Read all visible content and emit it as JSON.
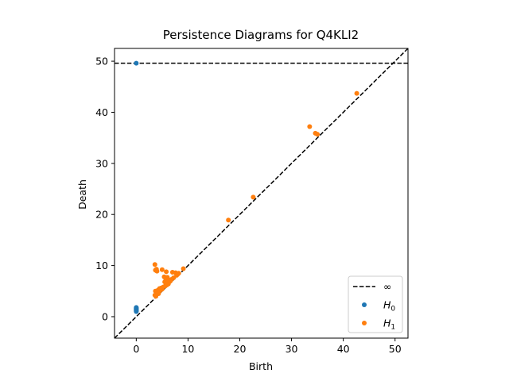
{
  "chart_data": {
    "type": "scatter",
    "title": "Persistence Diagrams for Q4KLI2",
    "xlabel": "Birth",
    "ylabel": "Death",
    "xlim": [
      -4.2,
      52.5
    ],
    "ylim": [
      -4.2,
      52.5
    ],
    "xticks": [
      0,
      10,
      20,
      30,
      40,
      50
    ],
    "yticks": [
      0,
      10,
      20,
      30,
      40,
      50
    ],
    "infinity_level": 49.6,
    "legend": {
      "placement": "lower-right",
      "entries": [
        {
          "label": "∞",
          "style": "dashed-line",
          "color": "#000000"
        },
        {
          "label": "H",
          "subscript": "0",
          "style": "dot",
          "color": "#1f77b4"
        },
        {
          "label": "H",
          "subscript": "1",
          "style": "dot",
          "color": "#ff7f0e"
        }
      ]
    },
    "series": [
      {
        "name": "H0",
        "color": "#1f77b4",
        "points": [
          [
            0,
            49.6
          ],
          [
            0,
            1.0
          ],
          [
            0,
            1.1
          ],
          [
            0,
            1.2
          ],
          [
            0,
            1.3
          ],
          [
            0,
            1.4
          ],
          [
            0,
            1.5
          ],
          [
            0,
            1.6
          ],
          [
            0,
            1.7
          ],
          [
            0,
            1.8
          ]
        ]
      },
      {
        "name": "H1",
        "color": "#ff7f0e",
        "points": [
          [
            42.6,
            43.7
          ],
          [
            33.5,
            37.2
          ],
          [
            34.6,
            35.9
          ],
          [
            35.0,
            35.7
          ],
          [
            22.6,
            23.4
          ],
          [
            17.8,
            18.9
          ],
          [
            3.6,
            10.2
          ],
          [
            3.7,
            9.1
          ],
          [
            3.9,
            9.3
          ],
          [
            4.0,
            8.9
          ],
          [
            5.0,
            9.2
          ],
          [
            5.8,
            8.8
          ],
          [
            7.0,
            8.7
          ],
          [
            7.6,
            8.6
          ],
          [
            8.2,
            8.5
          ],
          [
            9.1,
            9.4
          ],
          [
            5.4,
            7.8
          ],
          [
            5.7,
            7.4
          ],
          [
            6.0,
            7.7
          ],
          [
            6.3,
            7.2
          ],
          [
            6.6,
            7.0
          ],
          [
            5.5,
            6.8
          ],
          [
            5.9,
            6.5
          ],
          [
            6.2,
            6.4
          ],
          [
            6.8,
            7.3
          ],
          [
            7.2,
            7.6
          ],
          [
            7.8,
            8.1
          ],
          [
            8.0,
            8.3
          ],
          [
            5.6,
            6.0
          ],
          [
            5.9,
            6.2
          ],
          [
            3.7,
            5.0
          ],
          [
            4.0,
            4.8
          ],
          [
            4.2,
            5.2
          ],
          [
            4.5,
            5.5
          ],
          [
            4.8,
            5.6
          ],
          [
            5.0,
            5.4
          ],
          [
            3.6,
            4.2
          ],
          [
            3.9,
            4.4
          ],
          [
            4.1,
            4.6
          ],
          [
            4.4,
            4.9
          ],
          [
            3.8,
            4.0
          ],
          [
            4.6,
            5.1
          ],
          [
            4.3,
            4.5
          ],
          [
            5.2,
            5.8
          ],
          [
            6.5,
            6.9
          ]
        ]
      }
    ]
  }
}
